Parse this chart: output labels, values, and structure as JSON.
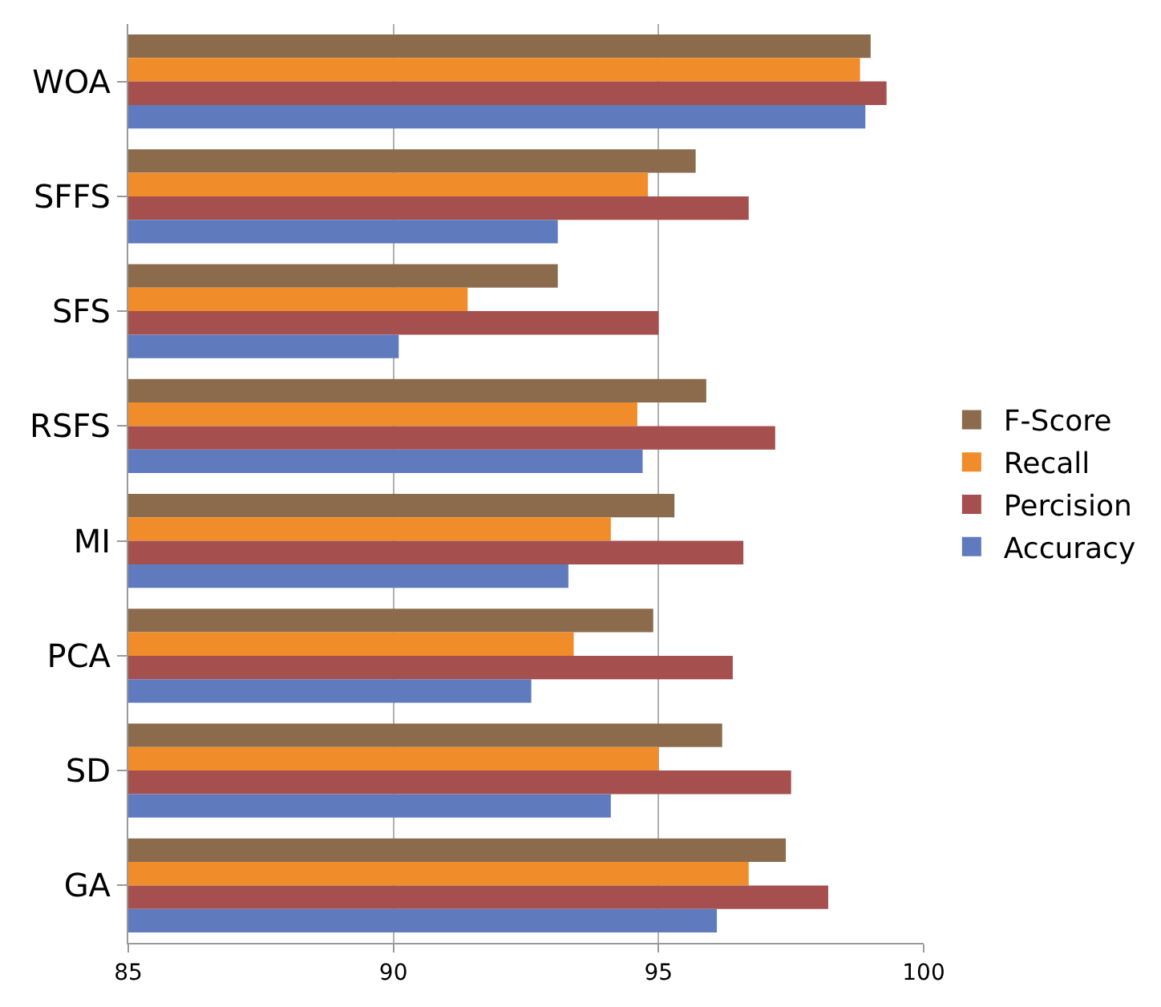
{
  "chart_data": {
    "type": "bar",
    "orientation": "horizontal",
    "categories": [
      "WOA",
      "SFFS",
      "SFS",
      "RSFS",
      "MI",
      "PCA",
      "SD",
      "GA"
    ],
    "series": [
      {
        "name": "F-Score",
        "color": "#8b6b4c",
        "values": [
          99.0,
          95.7,
          93.1,
          95.9,
          95.3,
          94.9,
          96.2,
          97.4
        ]
      },
      {
        "name": "Recall",
        "color": "#f08c2a",
        "values": [
          98.8,
          94.8,
          91.4,
          94.6,
          94.1,
          93.4,
          95.0,
          96.7
        ]
      },
      {
        "name": "Percision",
        "color": "#a5504f",
        "values": [
          99.3,
          96.7,
          95.0,
          97.2,
          96.6,
          96.4,
          97.5,
          98.2
        ]
      },
      {
        "name": "Accuracy",
        "color": "#5f7bbe",
        "values": [
          98.9,
          93.1,
          90.1,
          94.7,
          93.3,
          92.6,
          94.1,
          96.1
        ]
      }
    ],
    "xlim": [
      85,
      100
    ],
    "xticks": [
      85,
      90,
      95,
      100
    ],
    "grid": "x",
    "legend": "right"
  }
}
